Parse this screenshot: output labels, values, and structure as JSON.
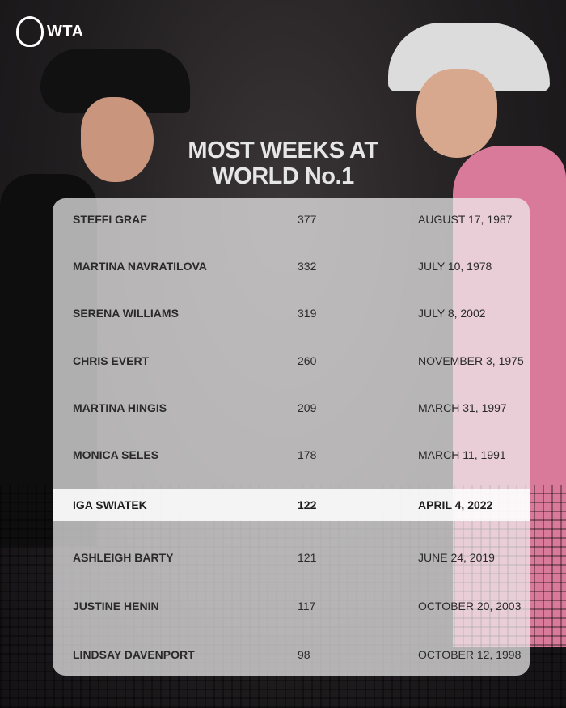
{
  "brand": {
    "logo_text": "WTA"
  },
  "title_lines": [
    "MOST WEEKS AT",
    "WORLD No.1"
  ],
  "rows": [
    {
      "name": "STEFFI GRAF",
      "weeks": "377",
      "date": "AUGUST 17, 1987"
    },
    {
      "name": "MARTINA NAVRATILOVA",
      "weeks": "332",
      "date": "JULY 10, 1978"
    },
    {
      "name": "SERENA WILLIAMS",
      "weeks": "319",
      "date": "JULY 8, 2002"
    },
    {
      "name": "CHRIS EVERT",
      "weeks": "260",
      "date": "NOVEMBER 3, 1975"
    },
    {
      "name": "MARTINA HINGIS",
      "weeks": "209",
      "date": "MARCH 31, 1997"
    },
    {
      "name": "MONICA SELES",
      "weeks": "178",
      "date": "MARCH 11, 1991"
    },
    {
      "name": "IGA SWIATEK",
      "weeks": "122",
      "date": "APRIL 4, 2022",
      "highlighted": true
    },
    {
      "name": "ASHLEIGH BARTY",
      "weeks": "121",
      "date": "JUNE 24, 2019"
    },
    {
      "name": "JUSTINE HENIN",
      "weeks": "117",
      "date": "OCTOBER 20, 2003"
    },
    {
      "name": "LINDSAY DAVENPORT",
      "weeks": "98",
      "date": "OCTOBER 12, 1998"
    }
  ]
}
